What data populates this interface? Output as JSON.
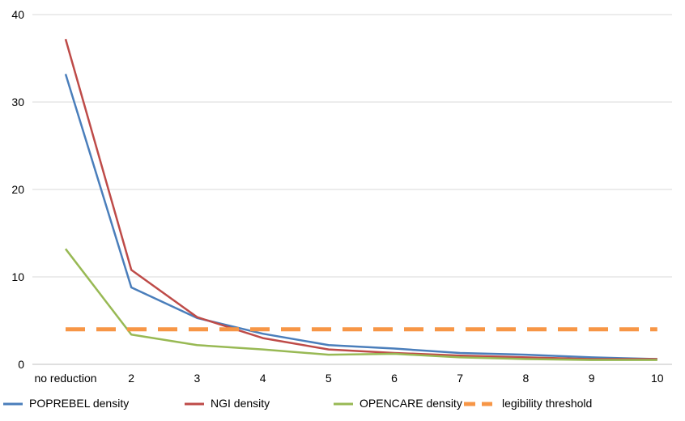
{
  "chart_data": {
    "type": "line",
    "title": "",
    "xlabel": "",
    "ylabel": "",
    "categories": [
      "no reduction",
      "2",
      "3",
      "4",
      "5",
      "6",
      "7",
      "8",
      "9",
      "10"
    ],
    "ylim": [
      0,
      40
    ],
    "yticks": [
      "0",
      "10",
      "20",
      "30",
      "40"
    ],
    "grid": true,
    "legend_position": "bottom",
    "series": [
      {
        "name": "POPREBEL density",
        "color": "#4a7ebb",
        "dashed": false,
        "values": [
          33.2,
          8.8,
          5.3,
          3.5,
          2.2,
          1.8,
          1.3,
          1.1,
          0.8,
          0.6
        ]
      },
      {
        "name": "NGI density",
        "color": "#be4b48",
        "dashed": false,
        "values": [
          37.2,
          10.8,
          5.4,
          3.0,
          1.7,
          1.3,
          1.0,
          0.8,
          0.6,
          0.6
        ]
      },
      {
        "name": "OPENCARE density",
        "color": "#98b954",
        "dashed": false,
        "values": [
          13.2,
          3.4,
          2.2,
          1.7,
          1.1,
          1.2,
          0.8,
          0.6,
          0.5,
          0.5
        ]
      },
      {
        "name": "legibility threshold",
        "color": "#f79646",
        "dashed": true,
        "values": [
          4,
          4,
          4,
          4,
          4,
          4,
          4,
          4,
          4,
          4
        ]
      }
    ]
  }
}
